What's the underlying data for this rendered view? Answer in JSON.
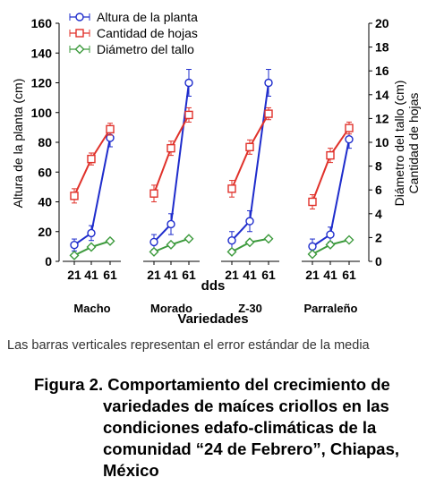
{
  "chart_data": {
    "type": "line",
    "xlabel": "dds",
    "group_label": "Variedades",
    "ylabel_left": "Altura de la planta (cm)",
    "ylabel_right_1": "Diámetro del tallo (cm)",
    "ylabel_right_2": "Cantidad de hojas",
    "ylim_left": [
      0,
      160
    ],
    "ylim_right": [
      0,
      20
    ],
    "yticks_left": [
      "0",
      "20",
      "40",
      "60",
      "80",
      "100",
      "120",
      "140",
      "160"
    ],
    "yticks_right": [
      "0",
      "2",
      "4",
      "6",
      "8",
      "10",
      "12",
      "14",
      "16",
      "18",
      "20"
    ],
    "x_ticks": [
      "21",
      "41",
      "61"
    ],
    "legend_position": "top-left",
    "groups": [
      "Macho",
      "Morado",
      "Z-30",
      "Parraleño"
    ],
    "series": [
      {
        "name": "Altura de la planta",
        "axis": "left",
        "color": "#1e2ccc",
        "marker": "circle",
        "values": [
          [
            11,
            19,
            83
          ],
          [
            13,
            25,
            120
          ],
          [
            14,
            27,
            120
          ],
          [
            10,
            18,
            82
          ]
        ],
        "errors": [
          [
            4,
            5,
            6
          ],
          [
            5,
            7,
            9
          ],
          [
            6,
            7,
            9
          ],
          [
            5,
            5,
            6
          ]
        ]
      },
      {
        "name": "Cantidad de hojas",
        "axis": "right",
        "color": "#e0312a",
        "marker": "square",
        "values": [
          [
            5.5,
            8.6,
            11.1
          ],
          [
            5.7,
            9.5,
            12.3
          ],
          [
            6.1,
            9.6,
            12.4
          ],
          [
            5.0,
            8.9,
            11.2
          ]
        ],
        "errors": [
          [
            0.6,
            0.5,
            0.5
          ],
          [
            0.7,
            0.6,
            0.6
          ],
          [
            0.7,
            0.6,
            0.5
          ],
          [
            0.6,
            0.6,
            0.5
          ]
        ]
      },
      {
        "name": "Diámetro del tallo",
        "axis": "right",
        "color": "#3c9a3c",
        "marker": "diamond",
        "values": [
          [
            0.5,
            1.2,
            1.7
          ],
          [
            0.8,
            1.4,
            1.9
          ],
          [
            0.8,
            1.6,
            1.9
          ],
          [
            0.6,
            1.4,
            1.8
          ]
        ],
        "errors": [
          [
            0.15,
            0.15,
            0.15
          ],
          [
            0.15,
            0.15,
            0.15
          ],
          [
            0.15,
            0.15,
            0.15
          ],
          [
            0.15,
            0.15,
            0.15
          ]
        ]
      }
    ]
  },
  "note": "Las barras verticales representan el error estándar de la media",
  "caption": {
    "label": "Figura 2.",
    "line1": "Comportamiento del crecimiento de",
    "line2": "variedades de maíces criollos en las",
    "line3": "condiciones edafo-climáticas de la",
    "line4": "comunidad “24 de Febrero”, Chiapas,",
    "line5": "México"
  }
}
